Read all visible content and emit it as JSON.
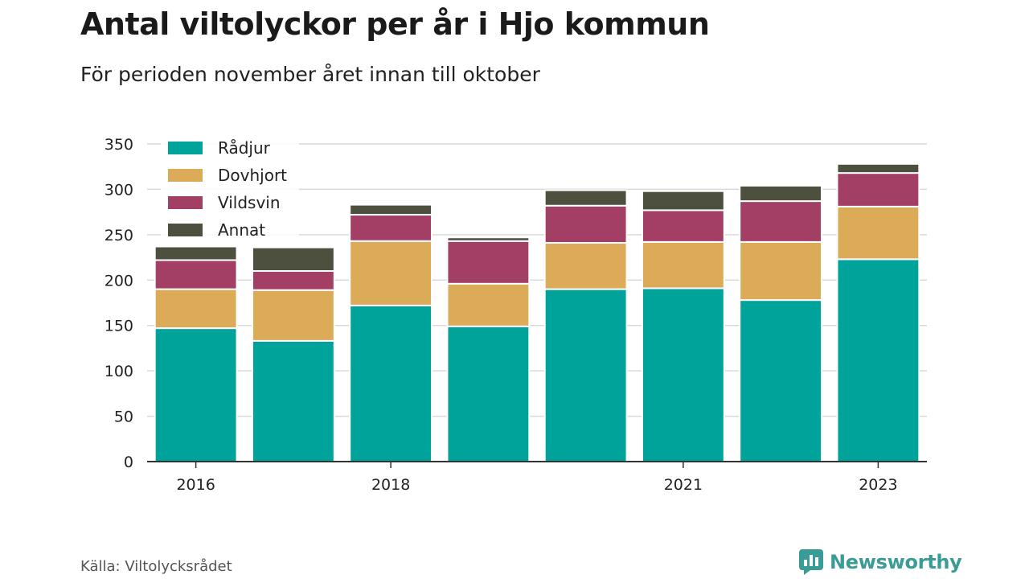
{
  "header": {
    "title": "Antal viltolyckor per år i Hjo kommun",
    "subtitle": "För perioden november året innan till oktober"
  },
  "footer": {
    "source": "Källa: Viltolycksrådet",
    "brand": "Newsworthy"
  },
  "chart_data": {
    "type": "bar",
    "stacked": true,
    "categories": [
      "2016",
      "2017",
      "2018",
      "2019",
      "2020",
      "2021",
      "2022",
      "2023"
    ],
    "x_tick_labels": [
      "2016",
      "",
      "2018",
      "",
      "",
      "2021",
      "",
      "2023"
    ],
    "series": [
      {
        "name": "Rådjur",
        "color": "#00a39a",
        "values": [
          147,
          133,
          172,
          149,
          190,
          191,
          178,
          223
        ]
      },
      {
        "name": "Dovhjort",
        "color": "#dbab58",
        "values": [
          43,
          56,
          71,
          47,
          51,
          51,
          64,
          58
        ]
      },
      {
        "name": "Vildsvin",
        "color": "#a33e64",
        "values": [
          32,
          21,
          29,
          47,
          41,
          35,
          45,
          37
        ]
      },
      {
        "name": "Annat",
        "color": "#4d4f3f",
        "values": [
          15,
          26,
          11,
          4,
          17,
          21,
          17,
          10
        ]
      }
    ],
    "ylim": [
      0,
      350
    ],
    "yticks": [
      0,
      50,
      100,
      150,
      200,
      250,
      300,
      350
    ],
    "grid": true,
    "legend_position": "top-left"
  }
}
